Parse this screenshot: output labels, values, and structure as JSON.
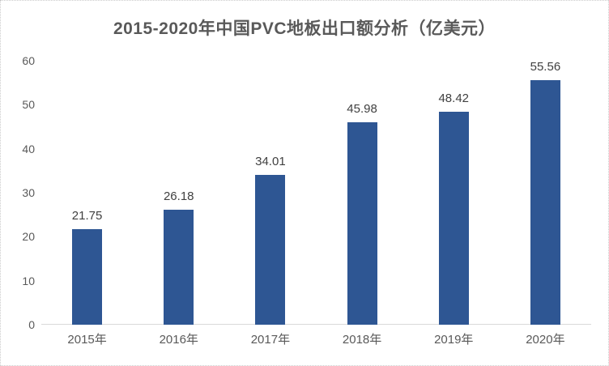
{
  "chart_data": {
    "type": "bar",
    "title": "2015-2020年中国PVC地板出口额分析（亿美元）",
    "categories": [
      "2015年",
      "2016年",
      "2017年",
      "2018年",
      "2019年",
      "2020年"
    ],
    "values": [
      21.75,
      26.18,
      34.01,
      45.98,
      48.42,
      55.56
    ],
    "value_labels": [
      "21.75",
      "26.18",
      "34.01",
      "45.98",
      "48.42",
      "55.56"
    ],
    "xlabel": "",
    "ylabel": "",
    "ylim": [
      0,
      60
    ],
    "yticks": [
      0,
      10,
      20,
      30,
      40,
      50,
      60
    ],
    "grid": false,
    "legend": false,
    "bar_color": "#2e5693",
    "title_color": "#595959",
    "axis_text_color": "#595959",
    "data_label_color": "#404040",
    "axis_line_color": "#d9d9d9"
  }
}
